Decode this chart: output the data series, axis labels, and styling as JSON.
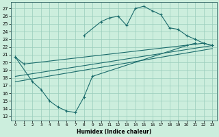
{
  "xlabel": "Humidex (Indice chaleur)",
  "xlim": [
    -0.5,
    23.5
  ],
  "ylim": [
    12.5,
    27.8
  ],
  "xticks": [
    0,
    1,
    2,
    3,
    4,
    5,
    6,
    7,
    8,
    9,
    10,
    11,
    12,
    13,
    14,
    15,
    16,
    17,
    18,
    19,
    20,
    21,
    22,
    23
  ],
  "yticks": [
    13,
    14,
    15,
    16,
    17,
    18,
    19,
    20,
    21,
    22,
    23,
    24,
    25,
    26,
    27
  ],
  "bg_color": "#cceedd",
  "grid_color": "#99ccbb",
  "line_color": "#1a6b6b",
  "series": [
    {
      "x": [
        0,
        1,
        22,
        23
      ],
      "y": [
        20.7,
        19.8,
        22.5,
        22.2
      ],
      "markers": true
    },
    {
      "x": [
        0,
        2,
        3,
        4,
        5,
        6,
        7,
        8,
        9,
        20,
        21
      ],
      "y": [
        20.7,
        17.5,
        16.5,
        15.0,
        14.2,
        13.7,
        13.5,
        15.5,
        18.2,
        22.2,
        22.5
      ],
      "markers": true
    },
    {
      "x": [
        8,
        10,
        11,
        12,
        13,
        14,
        15,
        16,
        17,
        18,
        19,
        20,
        21,
        22,
        23
      ],
      "y": [
        23.5,
        25.3,
        25.8,
        26.0,
        24.8,
        27.0,
        27.3,
        26.7,
        26.2,
        24.5,
        24.3,
        23.5,
        23.0,
        22.5,
        22.2
      ],
      "markers": true
    },
    {
      "x": [
        0,
        23
      ],
      "y": [
        17.5,
        21.8
      ],
      "markers": false
    },
    {
      "x": [
        0,
        23
      ],
      "y": [
        18.2,
        22.2
      ],
      "markers": false
    }
  ]
}
